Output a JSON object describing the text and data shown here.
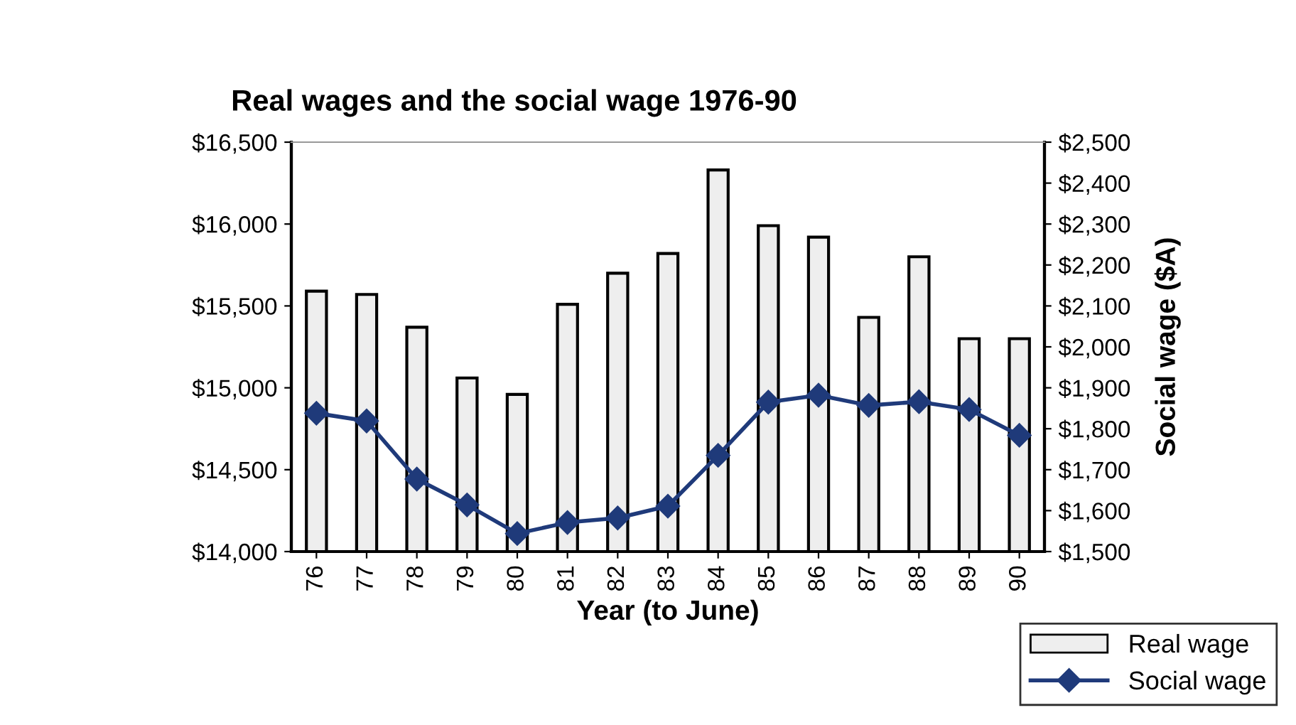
{
  "chart_data": {
    "type": "bar",
    "title": "Real wages and the social wage 1976-90",
    "xlabel": "Year (to June)",
    "y2label": "Social wage ($A)",
    "categories": [
      "76",
      "77",
      "78",
      "79",
      "80",
      "81",
      "82",
      "83",
      "84",
      "85",
      "86",
      "87",
      "88",
      "89",
      "90"
    ],
    "series": [
      {
        "name": "Real wage",
        "color": "#eeeeee",
        "values": [
          15590,
          15570,
          15370,
          15060,
          14960,
          15510,
          15700,
          15820,
          16330,
          15990,
          15920,
          15430,
          15800,
          15300,
          15300
        ]
      },
      {
        "name": "Social wage",
        "type": "line",
        "axis": "y2",
        "color": "#1f3a7a",
        "marker": "diamond",
        "values": [
          1838,
          1819,
          1677,
          1614,
          1544,
          1571,
          1582,
          1611,
          1735,
          1865,
          1882,
          1857,
          1866,
          1847,
          1784
        ]
      }
    ],
    "ylim": [
      14000,
      16500
    ],
    "yticks": [
      {
        "value": 14000,
        "label": "$14,000"
      },
      {
        "value": 14500,
        "label": "$14,500"
      },
      {
        "value": 15000,
        "label": "$15,000"
      },
      {
        "value": 15500,
        "label": "$15,500"
      },
      {
        "value": 16000,
        "label": "$16,000"
      },
      {
        "value": 16500,
        "label": "$16,500"
      }
    ],
    "y2lim": [
      1500,
      2500
    ],
    "y2ticks": [
      {
        "value": 1500,
        "label": "$1,500"
      },
      {
        "value": 1600,
        "label": "$1,600"
      },
      {
        "value": 1700,
        "label": "$1,700"
      },
      {
        "value": 1800,
        "label": "$1,800"
      },
      {
        "value": 1900,
        "label": "$1,900"
      },
      {
        "value": 2000,
        "label": "$2,000"
      },
      {
        "value": 2100,
        "label": "$2,100"
      },
      {
        "value": 2200,
        "label": "$2,200"
      },
      {
        "value": 2300,
        "label": "$2,300"
      },
      {
        "value": 2400,
        "label": "$2,400"
      },
      {
        "value": 2500,
        "label": "$2,500"
      }
    ],
    "grid": false,
    "legend": "bottom right"
  }
}
